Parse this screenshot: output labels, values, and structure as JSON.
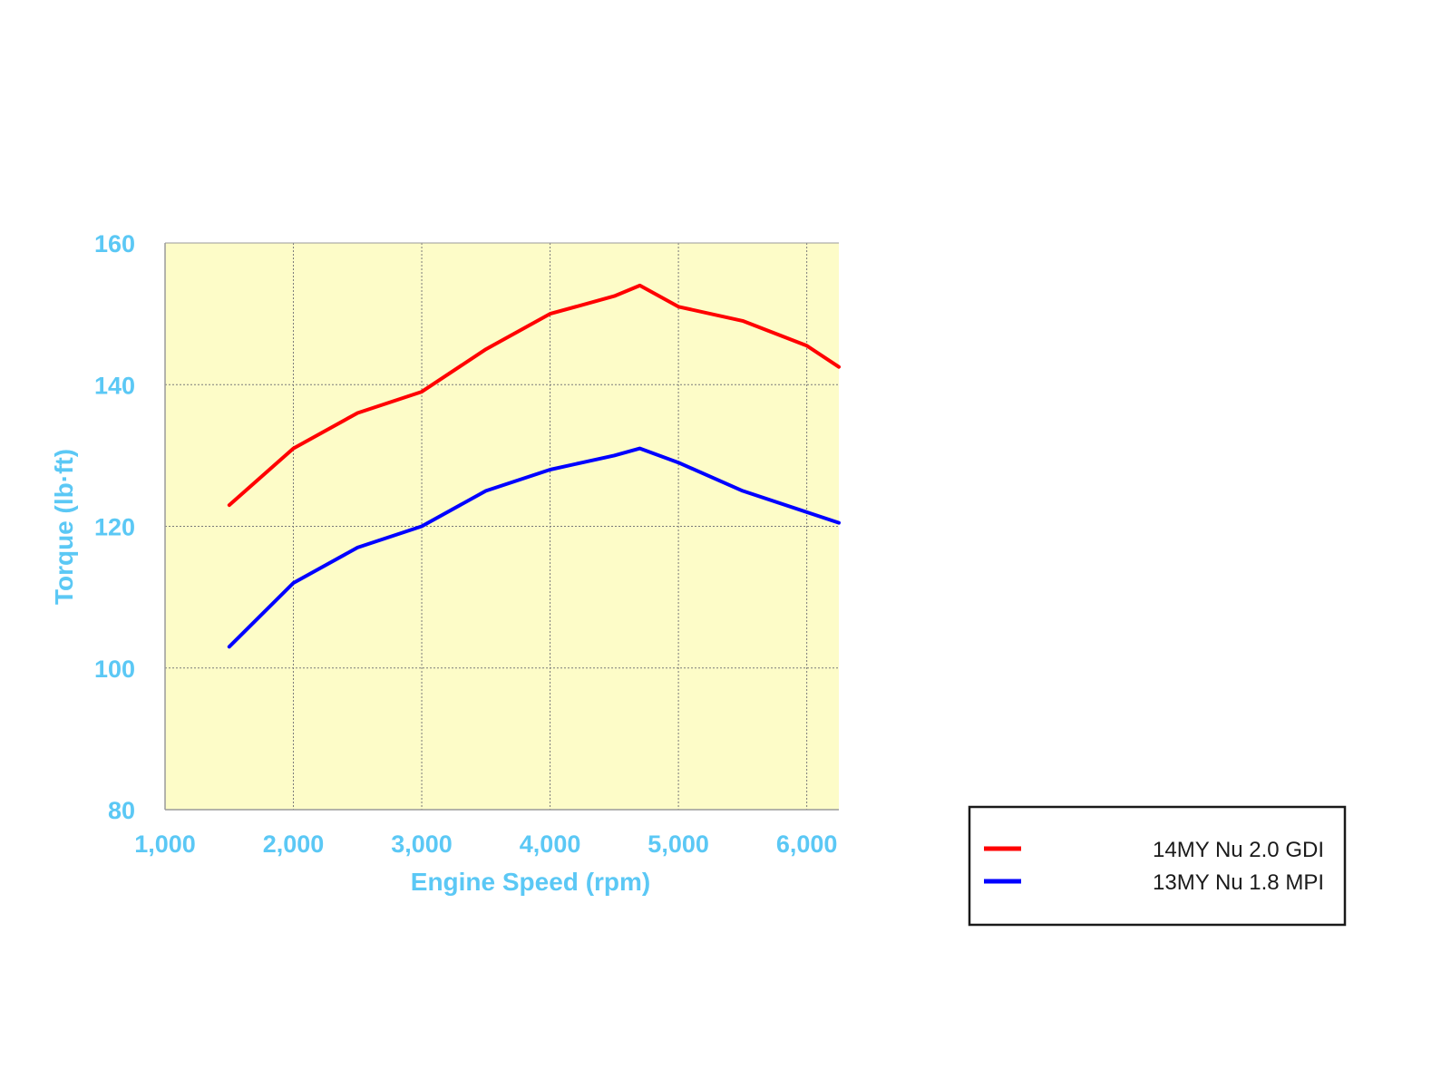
{
  "colors": {
    "axis_text": "#5bc8f5",
    "plot_background": "#fdfcc8",
    "grid": "#7a7a7a",
    "frame": "#9a9a9a",
    "legend_border": "#1a1a1a"
  },
  "chart_data": {
    "type": "line",
    "title": "",
    "xlabel": "Engine Speed (rpm)",
    "ylabel": "Torque (lb·ft)",
    "xlim": [
      1000,
      6250
    ],
    "ylim": [
      80,
      160
    ],
    "x_ticks": [
      1000,
      2000,
      3000,
      4000,
      5000,
      6000
    ],
    "x_tick_labels": [
      "1,000",
      "2,000",
      "3,000",
      "4,000",
      "5,000",
      "6,000"
    ],
    "y_ticks": [
      80,
      100,
      120,
      140,
      160
    ],
    "y_tick_labels": [
      "80",
      "100",
      "120",
      "140",
      "160"
    ],
    "grid": true,
    "legend_position": "bottom-right",
    "series": [
      {
        "name": "14MY Nu 2.0 GDI",
        "color": "#ff0000",
        "points": [
          [
            1500,
            123
          ],
          [
            2000,
            131
          ],
          [
            2500,
            136
          ],
          [
            3000,
            139
          ],
          [
            3500,
            145
          ],
          [
            4000,
            150
          ],
          [
            4500,
            152.5
          ],
          [
            4700,
            154
          ],
          [
            5000,
            151
          ],
          [
            5500,
            149
          ],
          [
            6000,
            145.5
          ],
          [
            6250,
            142.5
          ]
        ]
      },
      {
        "name": "13MY Nu 1.8 MPI",
        "color": "#0000ff",
        "points": [
          [
            1500,
            103
          ],
          [
            2000,
            112
          ],
          [
            2500,
            117
          ],
          [
            3000,
            120
          ],
          [
            3500,
            125
          ],
          [
            4000,
            128
          ],
          [
            4500,
            130
          ],
          [
            4700,
            131
          ],
          [
            5000,
            129
          ],
          [
            5500,
            125
          ],
          [
            6000,
            122
          ],
          [
            6250,
            120.5
          ]
        ]
      }
    ]
  }
}
